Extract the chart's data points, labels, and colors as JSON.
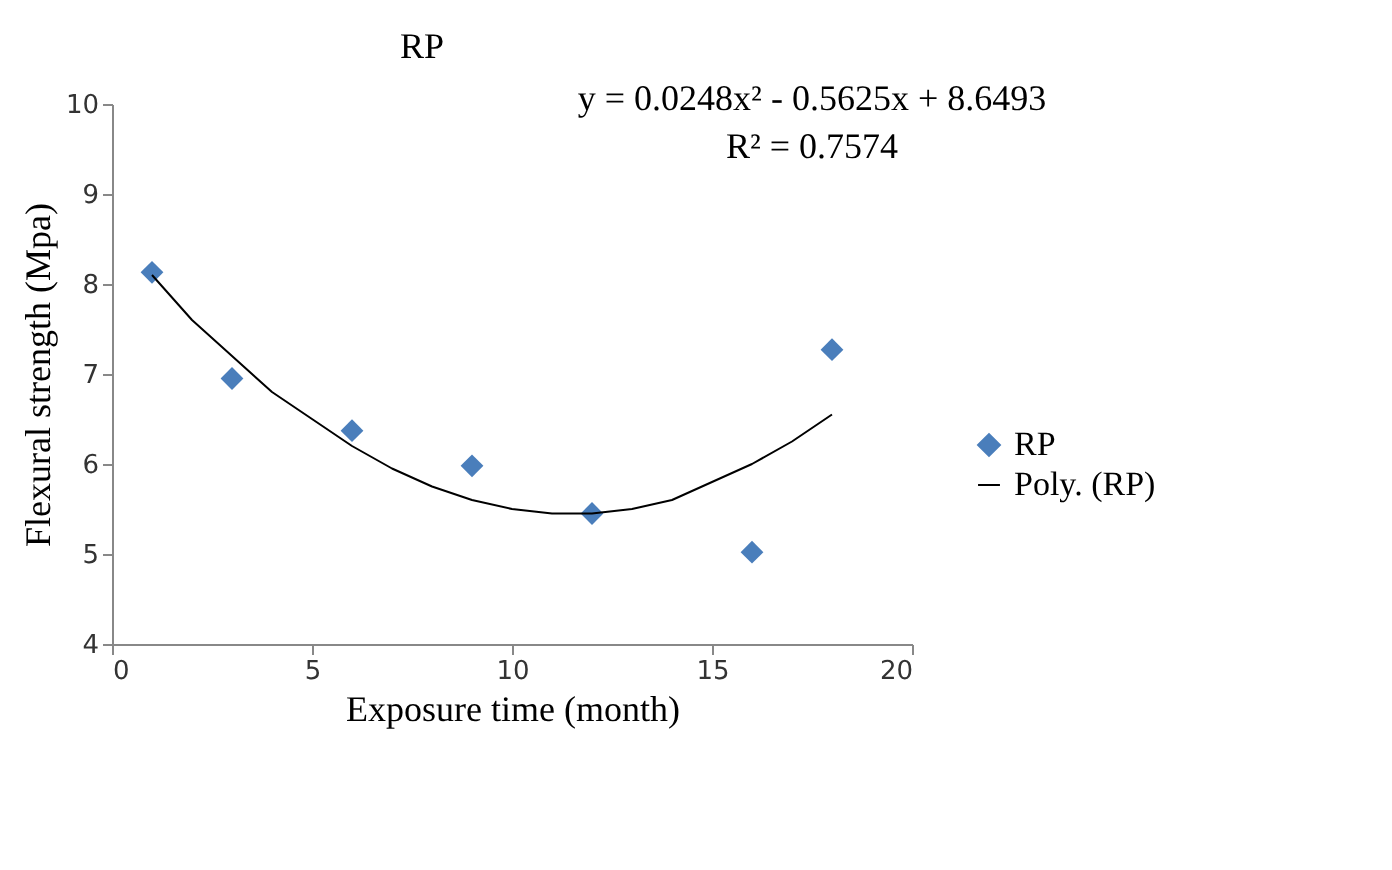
{
  "chart_data": {
    "type": "scatter",
    "title": "RP",
    "xlabel": "Exposure time (month)",
    "ylabel": "Flexural strength (Mpa)",
    "xlim": [
      0,
      20
    ],
    "xticks": [
      0,
      5,
      10,
      15,
      20
    ],
    "ylim": [
      4,
      10
    ],
    "yticks": [
      4,
      5,
      6,
      7,
      8,
      9,
      10
    ],
    "grid": false,
    "legend": "right",
    "series": [
      {
        "name": "RP",
        "marker": "diamond",
        "color": "#4a7ebb",
        "x": [
          1,
          3,
          6,
          9,
          12,
          16,
          18
        ],
        "values": [
          8.13,
          6.95,
          6.37,
          5.98,
          5.45,
          5.02,
          7.27
        ]
      },
      {
        "name": "Poly. (RP)",
        "type": "line",
        "color": "#000000",
        "line_style": "solid",
        "marker": "none",
        "x": [
          1,
          2,
          3,
          4,
          5,
          6,
          7,
          8,
          9,
          10,
          11,
          12,
          13,
          14,
          15,
          16,
          17,
          18
        ],
        "values": [
          8.1,
          7.6,
          7.2,
          6.8,
          6.5,
          6.2,
          5.95,
          5.75,
          5.6,
          5.5,
          5.45,
          5.45,
          5.5,
          5.6,
          5.8,
          6.0,
          6.25,
          6.55
        ]
      }
    ],
    "annotations": [
      "y = 0.0248x² - 0.5625x + 8.6493",
      "R² = 0.7574"
    ]
  }
}
